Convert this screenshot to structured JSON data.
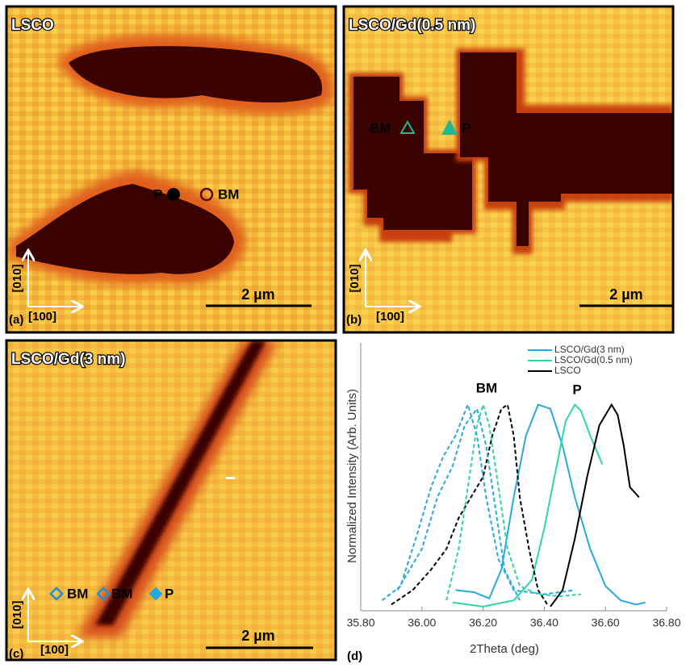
{
  "panels": [
    {
      "title": "LSCO",
      "label": "(a)",
      "markers": [
        "P",
        "BM"
      ],
      "scale_bar": "2 µm",
      "axis_y": "[010]",
      "axis_x": "[100]"
    },
    {
      "title": "LSCO/Gd(0.5 nm)",
      "label": "(b)",
      "markers": [
        "BM",
        "P"
      ],
      "scale_bar": "2 µm",
      "axis_y": "[010]",
      "axis_x": "[100]"
    },
    {
      "title": "LSCO/Gd(3 nm)",
      "label": "(c)",
      "markers": [
        "BM",
        "BM",
        "P"
      ],
      "scale_bar": "2 µm",
      "axis_y": "[010]",
      "axis_x": "[100]"
    }
  ],
  "chart_data": {
    "type": "line",
    "label": "(d)",
    "x_label": "2Theta (deg)",
    "y_label": "Normalized Intensity (Arb. Units)",
    "annotations": [
      "BM",
      "P"
    ],
    "xlim": [
      35.8,
      36.8
    ],
    "xticks": [
      {
        "value": 35.8,
        "label": "35.80"
      },
      {
        "value": 36.0,
        "label": "36.00"
      },
      {
        "value": 36.2,
        "label": "36.20"
      },
      {
        "value": 36.4,
        "label": "36.40"
      },
      {
        "value": 36.6,
        "label": "36.60"
      },
      {
        "value": 36.8,
        "label": "36.80"
      }
    ],
    "ylim": [
      0,
      1.3
    ],
    "legend": "upper right",
    "series": [
      {
        "name": "LSCO/Gd(3 nm)",
        "color": "#29a8e0",
        "dash": false,
        "x": [
          36.11,
          36.17,
          36.22,
          36.26,
          36.3,
          36.34,
          36.38,
          36.42,
          36.46,
          36.5,
          36.55,
          36.6,
          36.65,
          36.7,
          36.73
        ],
        "values": [
          0.1,
          0.09,
          0.06,
          0.2,
          0.55,
          0.85,
          1.0,
          0.98,
          0.8,
          0.55,
          0.3,
          0.12,
          0.05,
          0.03,
          0.04
        ]
      },
      {
        "name": "LSCO/Gd(0.5 nm)",
        "color": "#2fd6a0",
        "dash": false,
        "x": [
          36.1,
          36.2,
          36.3,
          36.36,
          36.4,
          36.44,
          36.47,
          36.5,
          36.52,
          36.55,
          36.59
        ],
        "values": [
          0.04,
          0.02,
          0.05,
          0.15,
          0.4,
          0.7,
          0.92,
          1.0,
          0.97,
          0.85,
          0.71
        ]
      },
      {
        "name": "LSCO",
        "color": "#000000",
        "dash": false,
        "x": [
          36.42,
          36.46,
          36.5,
          36.54,
          36.58,
          36.62,
          36.64,
          36.66,
          36.68,
          36.71
        ],
        "values": [
          0.02,
          0.1,
          0.35,
          0.65,
          0.9,
          1.0,
          0.95,
          0.8,
          0.6,
          0.55
        ]
      },
      {
        "color": "#000000",
        "dash": true,
        "x": [
          35.9,
          35.97,
          36.03,
          36.08,
          36.12,
          36.16,
          36.2,
          36.23,
          36.26,
          36.28,
          36.3,
          36.32,
          36.35,
          36.38,
          36.41
        ],
        "values": [
          0.03,
          0.1,
          0.2,
          0.3,
          0.45,
          0.55,
          0.65,
          0.85,
          0.98,
          1.0,
          0.85,
          0.55,
          0.3,
          0.1,
          0.03
        ]
      },
      {
        "color": "#2fd6a0",
        "dash": true,
        "x": [
          36.08,
          36.12,
          36.15,
          36.18,
          36.2,
          36.22,
          36.25,
          36.28,
          36.32,
          36.38,
          36.45,
          36.52
        ],
        "values": [
          0.05,
          0.3,
          0.6,
          0.9,
          1.0,
          0.9,
          0.6,
          0.3,
          0.12,
          0.08,
          0.07,
          0.08
        ]
      },
      {
        "color": "#29a8e0",
        "dash": true,
        "x": [
          35.87,
          35.93,
          35.98,
          36.03,
          36.07,
          36.11,
          36.15,
          36.18,
          36.21,
          36.25,
          36.3,
          36.4,
          36.5
        ],
        "values": [
          0.05,
          0.12,
          0.35,
          0.6,
          0.75,
          0.85,
          1.0,
          0.85,
          0.55,
          0.25,
          0.1,
          0.08,
          0.1
        ]
      },
      {
        "color": "#29a8e0",
        "dash": true,
        "x": [
          35.92,
          36.0,
          36.05,
          36.1,
          36.14,
          36.18,
          36.21,
          36.24,
          36.27,
          36.32
        ],
        "values": [
          0.1,
          0.3,
          0.55,
          0.7,
          0.9,
          0.98,
          0.8,
          0.5,
          0.2,
          0.05
        ]
      }
    ]
  }
}
